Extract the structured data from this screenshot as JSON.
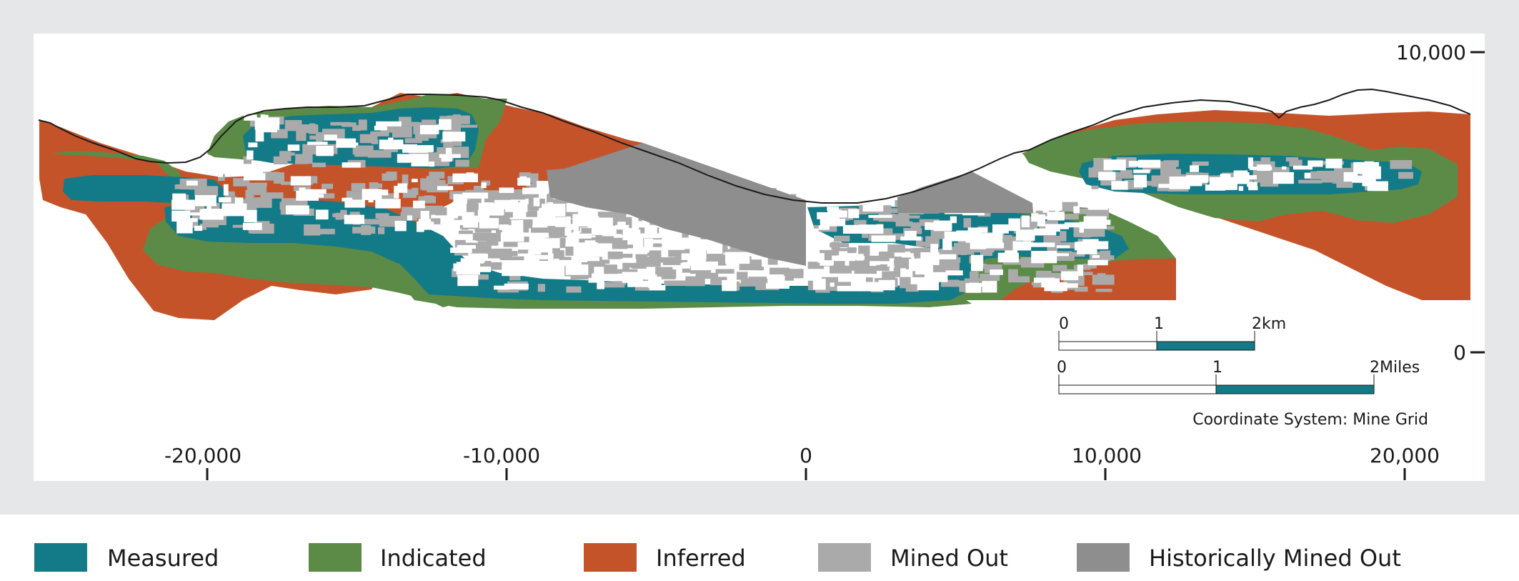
{
  "colors": {
    "measured": "#137a87",
    "indicated": "#5b8b47",
    "inferred": "#c5532a",
    "mined_out": "#aaaaaa",
    "historically_mined_out": "#8e8e8f",
    "frame_bg": "#e6e7e8",
    "map_bg": "#ffffff",
    "topography_line": "#1a1a1a"
  },
  "map": {
    "coordinate_system_label": "Coordinate System: Mine Grid",
    "x_axis": {
      "ticks": [
        {
          "value": -20000,
          "label": "-20,000"
        },
        {
          "value": -10000,
          "label": "-10,000"
        },
        {
          "value": 0,
          "label": "0"
        },
        {
          "value": 10000,
          "label": "10,000"
        },
        {
          "value": 20000,
          "label": "20,000"
        }
      ]
    },
    "y_axis": {
      "ticks": [
        {
          "value": 10000,
          "label": "10,000"
        },
        {
          "value": 0,
          "label": "0"
        }
      ]
    },
    "scale_bar_km": {
      "labels": [
        "0",
        "1",
        "2km"
      ]
    },
    "scale_bar_miles": {
      "labels": [
        "0",
        "1",
        "2Miles"
      ]
    }
  },
  "legend": [
    {
      "key": "measured",
      "label": "Measured"
    },
    {
      "key": "indicated",
      "label": "Indicated"
    },
    {
      "key": "inferred",
      "label": "Inferred"
    },
    {
      "key": "mined_out",
      "label": "Mined Out"
    },
    {
      "key": "historically_mined_out",
      "label": "Historically Mined Out"
    }
  ]
}
